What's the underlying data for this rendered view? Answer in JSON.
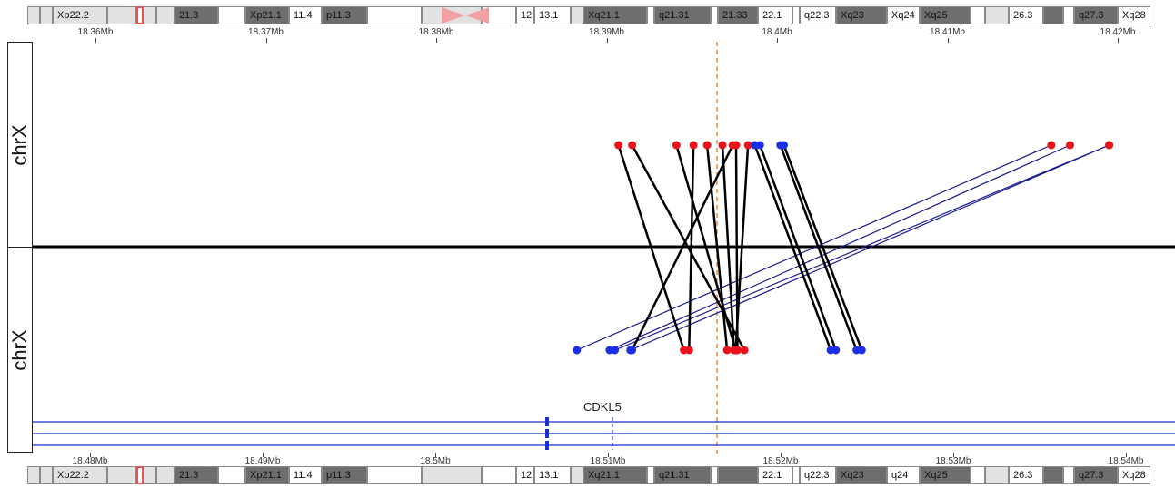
{
  "ideogram_top": {
    "bands": [
      {
        "label": "",
        "stain": "b1"
      },
      {
        "label": "",
        "stain": "b1"
      },
      {
        "label": "Xp22.2",
        "stain": "b1"
      },
      {
        "label": "",
        "stain": "b1"
      },
      {
        "label": "",
        "stain": "b3"
      },
      {
        "label": "",
        "stain": "b1"
      },
      {
        "label": "",
        "stain": "b1"
      },
      {
        "label": "21.3",
        "stain": "b2"
      },
      {
        "label": "",
        "stain": "b0"
      },
      {
        "label": "Xp21.1",
        "stain": "b2"
      },
      {
        "label": "11.4",
        "stain": "b0"
      },
      {
        "label": "p11.3",
        "stain": "b2"
      },
      {
        "label": "",
        "stain": "b0"
      },
      {
        "label": "",
        "stain": "b1"
      },
      {
        "label": "",
        "stain": "b0"
      },
      {
        "label": "12",
        "stain": "b0"
      },
      {
        "label": "13.1",
        "stain": "b0"
      },
      {
        "label": "",
        "stain": "b1"
      },
      {
        "label": "Xq21.1",
        "stain": "b2"
      },
      {
        "label": "",
        "stain": "b0"
      },
      {
        "label": "q21.31",
        "stain": "b2"
      },
      {
        "label": "",
        "stain": "b0"
      },
      {
        "label": "21.33",
        "stain": "b2"
      },
      {
        "label": "22.1",
        "stain": "b0"
      },
      {
        "label": "",
        "stain": "b0"
      },
      {
        "label": "q22.3",
        "stain": "b0"
      },
      {
        "label": "Xq23",
        "stain": "b2"
      },
      {
        "label": "Xq24",
        "stain": "b0"
      },
      {
        "label": "Xq25",
        "stain": "b2"
      },
      {
        "label": "",
        "stain": "b0"
      },
      {
        "label": "",
        "stain": "b1"
      },
      {
        "label": "26.3",
        "stain": "b0"
      },
      {
        "label": "",
        "stain": "b2"
      },
      {
        "label": "",
        "stain": "b0"
      },
      {
        "label": "q27.3",
        "stain": "b2"
      },
      {
        "label": "Xq28",
        "stain": "b0"
      }
    ]
  },
  "ideogram_bottom": {
    "bands": [
      {
        "label": "",
        "stain": "b1"
      },
      {
        "label": "",
        "stain": "b1"
      },
      {
        "label": "Xp22.2",
        "stain": "b1"
      },
      {
        "label": "",
        "stain": "b1"
      },
      {
        "label": "",
        "stain": "b3"
      },
      {
        "label": "",
        "stain": "b1"
      },
      {
        "label": "",
        "stain": "b1"
      },
      {
        "label": "21.3",
        "stain": "b2"
      },
      {
        "label": "",
        "stain": "b0"
      },
      {
        "label": "Xp21.1",
        "stain": "b2"
      },
      {
        "label": "11.4",
        "stain": "b0"
      },
      {
        "label": "p11.3",
        "stain": "b2"
      },
      {
        "label": "",
        "stain": "b0"
      },
      {
        "label": "",
        "stain": "b1"
      },
      {
        "label": "",
        "stain": "b0"
      },
      {
        "label": "12",
        "stain": "b0"
      },
      {
        "label": "13.1",
        "stain": "b0"
      },
      {
        "label": "",
        "stain": "b1"
      },
      {
        "label": "Xq21.1",
        "stain": "b2"
      },
      {
        "label": "",
        "stain": "b0"
      },
      {
        "label": "q21.31",
        "stain": "b2"
      },
      {
        "label": "",
        "stain": "b0"
      },
      {
        "label": "",
        "stain": "b2"
      },
      {
        "label": "22.1",
        "stain": "b0"
      },
      {
        "label": "",
        "stain": "b0"
      },
      {
        "label": "q22.3",
        "stain": "b0"
      },
      {
        "label": "Xq23",
        "stain": "b2"
      },
      {
        "label": "q24",
        "stain": "b0"
      },
      {
        "label": "Xq25",
        "stain": "b2"
      },
      {
        "label": "",
        "stain": "b0"
      },
      {
        "label": "",
        "stain": "b1"
      },
      {
        "label": "26.3",
        "stain": "b0"
      },
      {
        "label": "",
        "stain": "b2"
      },
      {
        "label": "",
        "stain": "b0"
      },
      {
        "label": "q27.3",
        "stain": "b2"
      },
      {
        "label": "Xq28",
        "stain": "b0"
      }
    ]
  },
  "ruler_top": {
    "ticks": [
      "18.36Mb",
      "18.37Mb",
      "18.38Mb",
      "18.39Mb",
      "18.4Mb",
      "18.41Mb",
      "18.42Mb"
    ]
  },
  "ruler_bottom": {
    "ticks": [
      "18.48Mb",
      "18.49Mb",
      "18.5Mb",
      "18.51Mb",
      "18.52Mb",
      "18.53Mb",
      "18.54Mb"
    ]
  },
  "tracks": {
    "top_label": "chrX",
    "bottom_label": "chrX"
  },
  "gene": {
    "name": "CDKL5"
  },
  "colors": {
    "red_point": "#e8131b",
    "blue_point": "#1c2fe6",
    "link_black": "#000000",
    "link_navy": "#1a1a8c",
    "guide_line": "#e98a3c",
    "transcript": "#1a2fd6"
  },
  "links": {
    "black": [
      {
        "top": 18.3907,
        "bottom": 18.5144
      },
      {
        "top": 18.3915,
        "bottom": 18.5179
      },
      {
        "top": 18.3941,
        "bottom": 18.5174
      },
      {
        "top": 18.3951,
        "bottom": 18.5147
      },
      {
        "top": 18.3959,
        "bottom": 18.5169
      },
      {
        "top": 18.3968,
        "bottom": 18.5173
      },
      {
        "top": 18.3974,
        "bottom": 18.5114
      },
      {
        "top": 18.3976,
        "bottom": 18.5175
      },
      {
        "top": 18.3983,
        "bottom": 18.5174
      },
      {
        "top": 18.399,
        "bottom": 18.5232
      },
      {
        "top": 18.4002,
        "bottom": 18.5244
      },
      {
        "top": 18.4004,
        "bottom": 18.5247
      },
      {
        "top": 18.3987,
        "bottom": 18.5229
      }
    ],
    "navy": [
      {
        "top": 18.4161,
        "bottom": 18.5082
      },
      {
        "top": 18.4172,
        "bottom": 18.5101
      },
      {
        "top": 18.4195,
        "bottom": 18.5104
      },
      {
        "top": 18.4195,
        "bottom": 18.5113
      }
    ]
  }
}
